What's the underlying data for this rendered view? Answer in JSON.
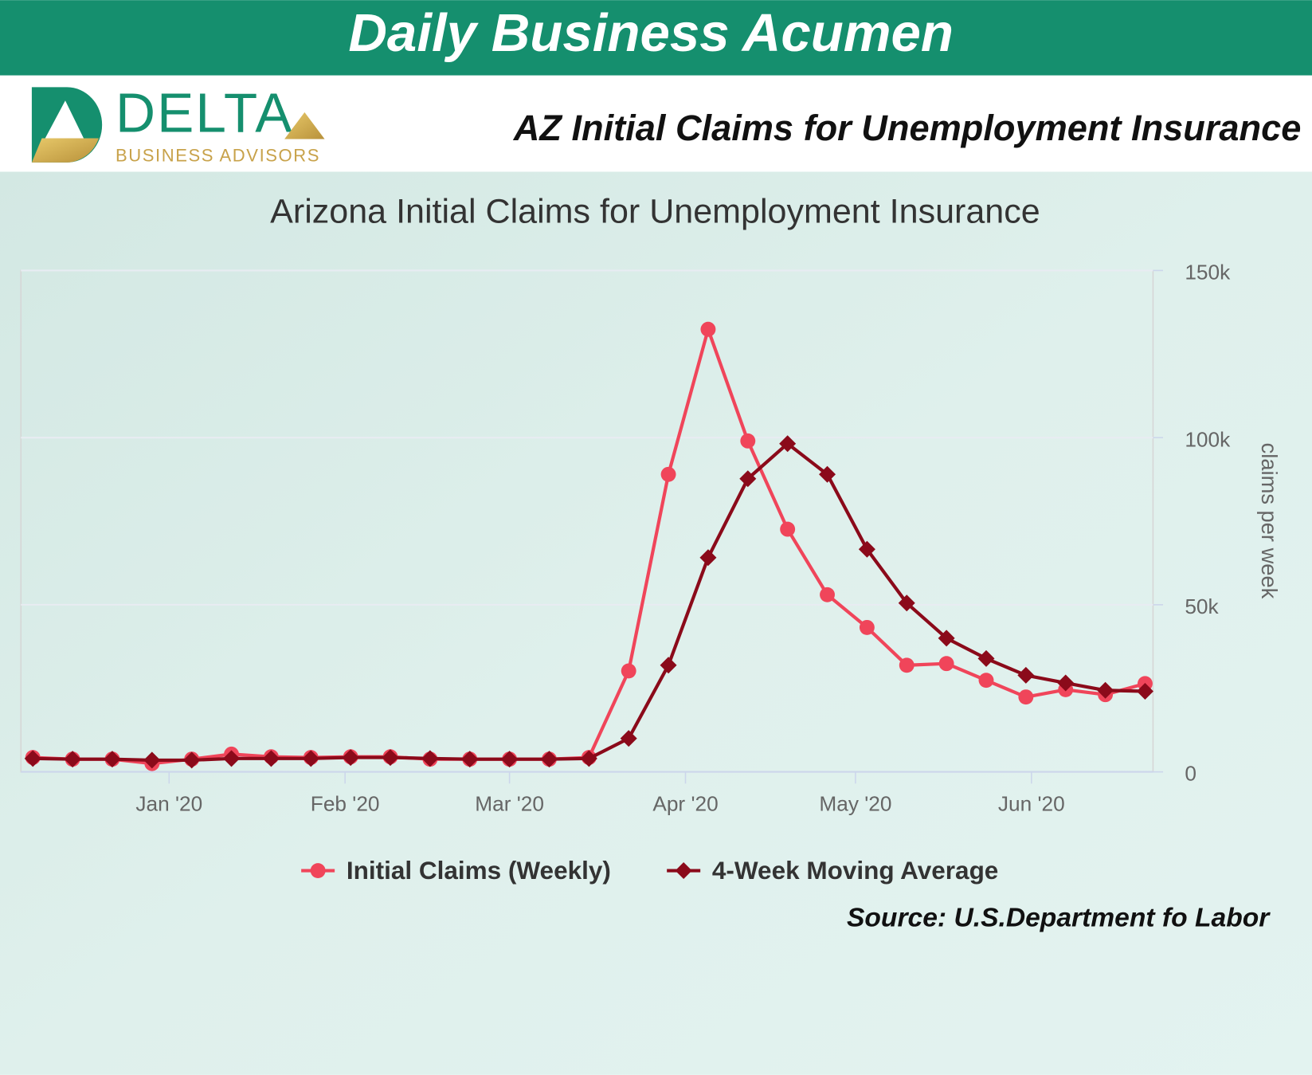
{
  "banner": {
    "title": "Daily Business Acumen"
  },
  "logo": {
    "name": "DELTA",
    "tagline": "BUSINESS ADVISORS"
  },
  "headline": "AZ Initial Claims for Unemployment Insurance",
  "source": "Source: U.S.Department fo Labor",
  "chart_data": {
    "type": "line",
    "title": "Arizona Initial Claims for Unemployment Insurance",
    "y_label": "claims per week",
    "categories": [
      null,
      null,
      null,
      null,
      null,
      null,
      null,
      null,
      null,
      null,
      null,
      null,
      null,
      null,
      null,
      null,
      null,
      null,
      null,
      null,
      null,
      null,
      null,
      null,
      null,
      null,
      null,
      null,
      null
    ],
    "series": [
      {
        "name": "Initial Claims (Weekly)",
        "color": "#f0455a",
        "marker": "circle",
        "values": [
          4300,
          3800,
          3800,
          2500,
          3800,
          5300,
          4500,
          4300,
          4500,
          4500,
          3800,
          3800,
          3800,
          3800,
          4300,
          30200,
          89000,
          132400,
          99000,
          72600,
          53000,
          43200,
          31900,
          32400,
          27400,
          22400,
          24600,
          23100,
          26400
        ]
      },
      {
        "name": "4-Week Moving Average",
        "color": "#8b0a1a",
        "marker": "diamond",
        "values": [
          4000,
          3800,
          3800,
          3500,
          3500,
          4000,
          4000,
          4000,
          4300,
          4300,
          4000,
          3800,
          3800,
          3800,
          4000,
          10000,
          31900,
          64100,
          87700,
          98200,
          89000,
          66600,
          50500,
          40000,
          33900,
          28900,
          26600,
          24400,
          24100
        ]
      }
    ],
    "xlim": [
      -0.3,
      28.2
    ],
    "xticks": [
      {
        "value": 3.43,
        "label": "Jan '20"
      },
      {
        "value": 7.86,
        "label": "Feb '20"
      },
      {
        "value": 12,
        "label": "Mar '20"
      },
      {
        "value": 16.43,
        "label": "Apr '20"
      },
      {
        "value": 20.71,
        "label": "May '20"
      },
      {
        "value": 25.14,
        "label": "Jun '20"
      }
    ],
    "ylim": [
      0,
      150000
    ],
    "yticks": [
      0,
      {
        "value": 50000,
        "label": "50k"
      },
      {
        "value": 100000,
        "label": "100k"
      },
      {
        "value": 150000,
        "label": "150k"
      }
    ],
    "y_axis_side": "right",
    "grid": true,
    "legend": "bottom"
  }
}
